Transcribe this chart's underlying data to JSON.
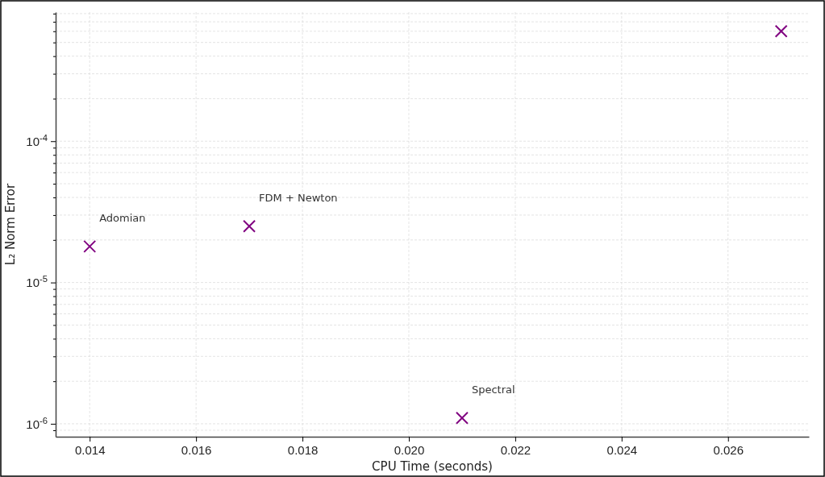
{
  "chart_data": {
    "type": "scatter",
    "xlabel": "CPU Time (seconds)",
    "ylabel": "L₂ Norm Error",
    "x": [
      0.014,
      0.017,
      0.021,
      0.027
    ],
    "series": [
      {
        "color": "#800080",
        "values": [
          1.8e-05,
          2.5e-05,
          1.1e-06,
          0.0006
        ]
      }
    ],
    "marker": "cross",
    "log": "y",
    "grid": true,
    "xlim": [
      0.01336,
      0.02752
    ],
    "xticks": [
      {
        "value": 0.014,
        "label": "0.014"
      },
      {
        "value": 0.016,
        "label": "0.016"
      },
      {
        "value": 0.018,
        "label": "0.018"
      },
      {
        "value": 0.02,
        "label": "0.020"
      },
      {
        "value": 0.022,
        "label": "0.022"
      },
      {
        "value": 0.024,
        "label": "0.024"
      },
      {
        "value": 0.026,
        "label": "0.026"
      }
    ],
    "ylim": [
      8.1e-07,
      0.00082
    ],
    "yticks": [
      {
        "value": 9e-07,
        "label": null
      },
      {
        "value": 1e-06,
        "label": "10$^{-6}$"
      },
      {
        "value": 2e-06,
        "label": null
      },
      {
        "value": 3e-06,
        "label": null
      },
      {
        "value": 4e-06,
        "label": null
      },
      {
        "value": 5e-06,
        "label": null
      },
      {
        "value": 6e-06,
        "label": null
      },
      {
        "value": 7e-06,
        "label": null
      },
      {
        "value": 8e-06,
        "label": null
      },
      {
        "value": 9e-06,
        "label": null
      },
      {
        "value": 1e-05,
        "label": "10$^{-5}$"
      },
      {
        "value": 2e-05,
        "label": null
      },
      {
        "value": 3e-05,
        "label": null
      },
      {
        "value": 4e-05,
        "label": null
      },
      {
        "value": 5e-05,
        "label": null
      },
      {
        "value": 6e-05,
        "label": null
      },
      {
        "value": 7e-05,
        "label": null
      },
      {
        "value": 8e-05,
        "label": null
      },
      {
        "value": 9e-05,
        "label": null
      },
      {
        "value": 0.0001,
        "label": "10$^{-4}$"
      },
      {
        "value": 0.0002,
        "label": null
      },
      {
        "value": 0.0003,
        "label": null
      },
      {
        "value": 0.0004,
        "label": null
      },
      {
        "value": 0.0005,
        "label": null
      },
      {
        "value": 0.0006,
        "label": null
      },
      {
        "value": 0.0007,
        "label": null
      },
      {
        "value": 0.0008,
        "label": null
      }
    ],
    "annotations": [
      {
        "text": "Adomian",
        "x": 0.014,
        "y": 1.8e-05
      },
      {
        "text": "FDM + Newton",
        "x": 0.017,
        "y": 2.5e-05
      },
      {
        "text": "Spectral",
        "x": 0.021,
        "y": 1.1e-06
      }
    ]
  }
}
